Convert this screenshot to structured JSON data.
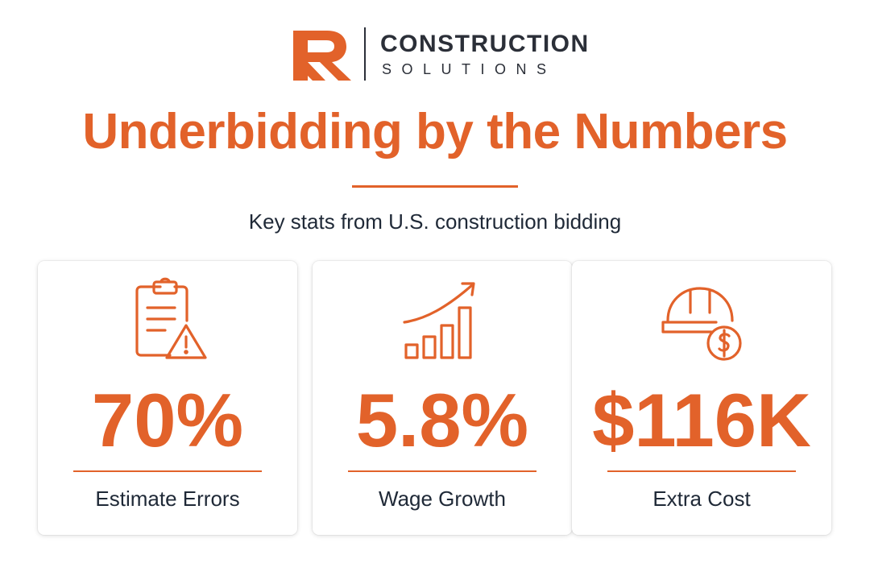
{
  "brand": {
    "name_line1": "CONSTRUCTION",
    "name_line2": "SOLUTIONS",
    "accent_color": "#e2622a",
    "text_color": "#2b2f38"
  },
  "title": "Underbidding by the Numbers",
  "subtitle": "Key stats from U.S. construction bidding",
  "stats": [
    {
      "icon": "clipboard-warning-icon",
      "value": "70%",
      "label": "Estimate Errors"
    },
    {
      "icon": "growth-chart-icon",
      "value": "5.8%",
      "label": "Wage Growth"
    },
    {
      "icon": "hardhat-dollar-icon",
      "value": "$116K",
      "label": "Extra Cost"
    }
  ]
}
